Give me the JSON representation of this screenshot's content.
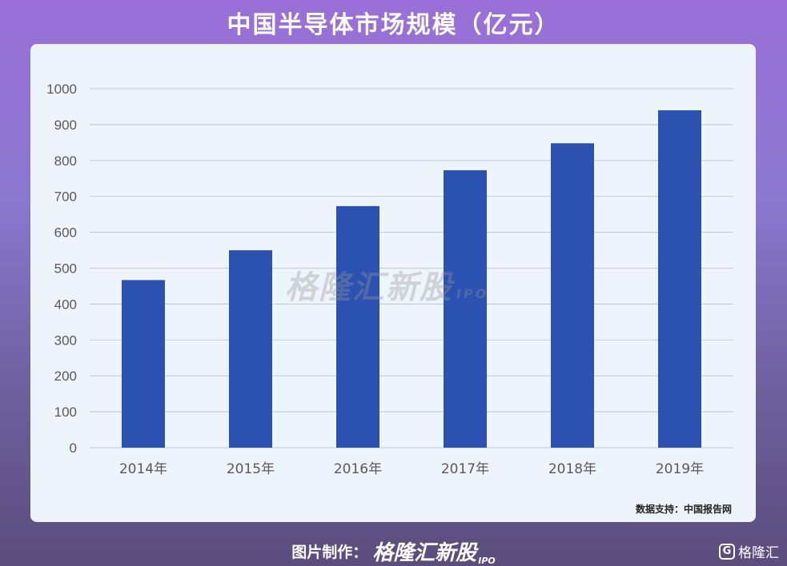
{
  "title": "中国半导体市场规模（亿元）",
  "chart_data": {
    "type": "bar",
    "categories": [
      "2014年",
      "2015年",
      "2016年",
      "2017年",
      "2018年",
      "2019年"
    ],
    "values": [
      467,
      550,
      673,
      773,
      848,
      940
    ],
    "ylim": [
      0,
      1000
    ],
    "yticks": [
      0,
      100,
      200,
      300,
      400,
      500,
      600,
      700,
      800,
      900,
      1000
    ],
    "grid": true,
    "bar_color": "#2b52b1"
  },
  "watermark": {
    "text": "格隆汇新股",
    "suffix": "IPO"
  },
  "source": "数据支持：中国报告网",
  "footer": {
    "made_by": "图片制作：",
    "brand": "格隆汇新股",
    "brand_suffix": "IPO"
  },
  "corner_logo": {
    "icon_letter": "G",
    "text": "格隆汇"
  }
}
